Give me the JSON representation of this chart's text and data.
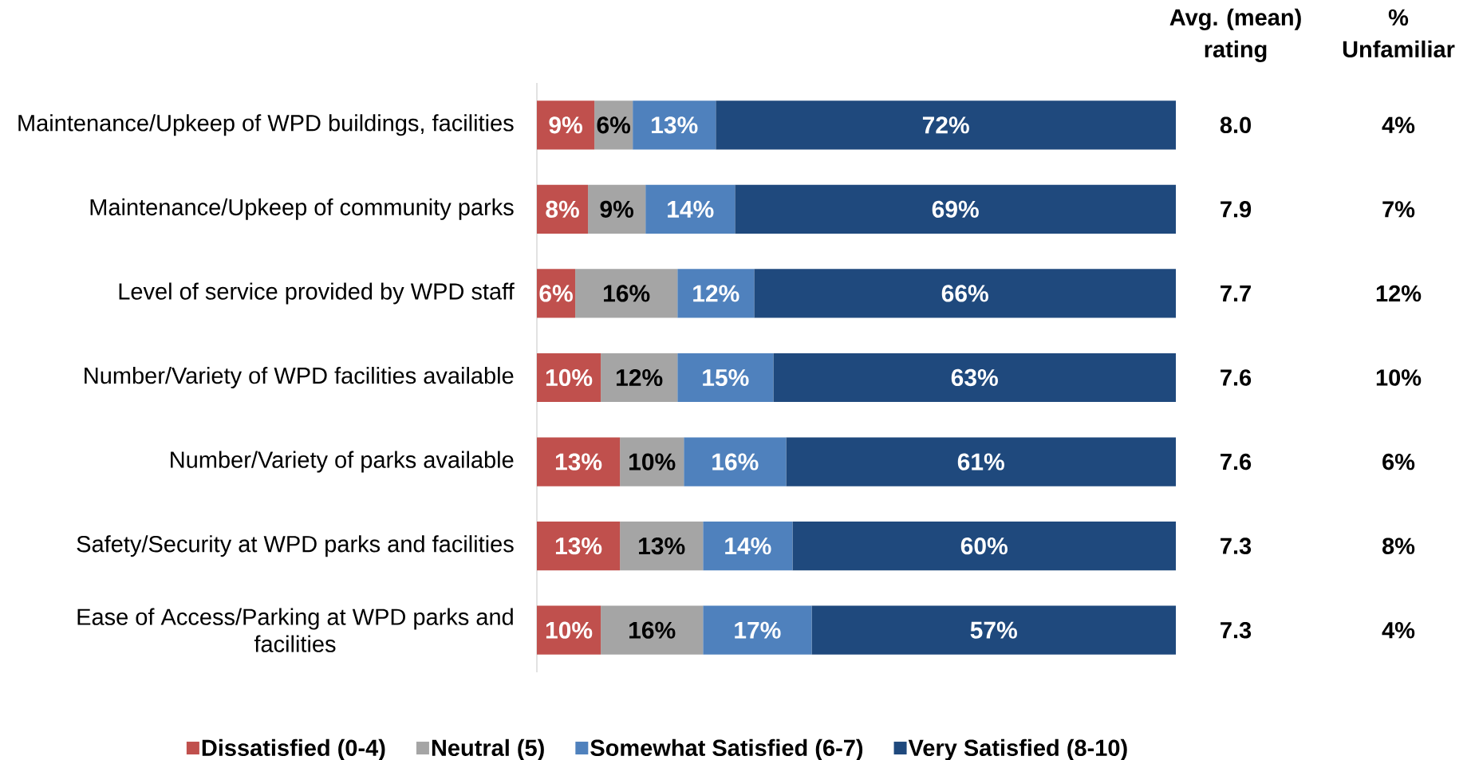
{
  "chart_data": [
    {
      "type": "bar",
      "orientation": "horizontal",
      "stacked": true,
      "categories": [
        "Maintenance/Upkeep of WPD buildings, facilities",
        "Maintenance/Upkeep of community parks",
        "Level of service provided by WPD staff",
        "Number/Variety of WPD facilities available",
        "Number/Variety of parks available",
        "Safety/Security at WPD parks and facilities",
        "Ease of Access/Parking at WPD parks and facilities"
      ],
      "series": [
        {
          "name": "Dissatisfied (0-4)",
          "color": "#c0504d",
          "values": [
            9,
            8,
            6,
            10,
            13,
            13,
            10
          ],
          "value_labels": [
            "9%",
            "8%",
            "6%",
            "10%",
            "13%",
            "13%",
            "10%"
          ]
        },
        {
          "name": "Neutral (5)",
          "color": "#a5a5a5",
          "values": [
            6,
            9,
            16,
            12,
            10,
            13,
            16
          ],
          "value_labels": [
            "6%",
            "9%",
            "16%",
            "12%",
            "10%",
            "13%",
            "16%"
          ]
        },
        {
          "name": "Somewhat Satisfied (6-7)",
          "color": "#4f81bd",
          "values": [
            13,
            14,
            12,
            15,
            16,
            14,
            17
          ],
          "value_labels": [
            "13%",
            "14%",
            "12%",
            "15%",
            "16%",
            "14%",
            "17%"
          ]
        },
        {
          "name": "Very Satisfied (8-10)",
          "color": "#1f497d",
          "values": [
            72,
            69,
            66,
            63,
            61,
            60,
            57
          ],
          "value_labels": [
            "72%",
            "69%",
            "66%",
            "63%",
            "61%",
            "60%",
            "57%"
          ]
        }
      ],
      "tick_labels": "y",
      "legend": "bottom"
    },
    {
      "type": "other",
      "title": "Avg. (mean) rating",
      "annotations": [
        "8.0",
        "7.9",
        "7.7",
        "7.6",
        "7.6",
        "7.3",
        "7.3"
      ]
    },
    {
      "type": "other",
      "title": "% Unfamiliar",
      "annotations": [
        "4%",
        "7%",
        "12%",
        "10%",
        "6%",
        "8%",
        "4%"
      ]
    }
  ]
}
